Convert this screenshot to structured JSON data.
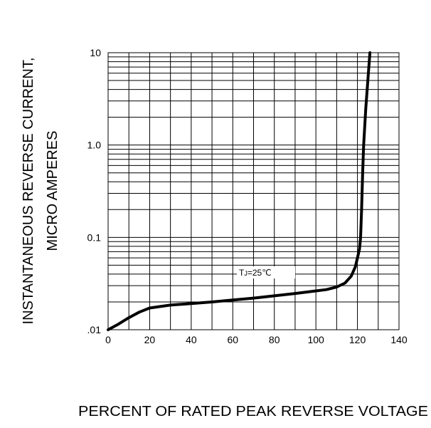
{
  "chart_data": {
    "type": "line",
    "title": "",
    "ylabel_lines": [
      "INSTANTANEOUS REVERSE CURRENT,",
      "MICRO AMPERES"
    ],
    "xlabel": "PERCENT OF RATED PEAK REVERSE VOLTAGE",
    "y_scale": "log",
    "x_range": [
      0,
      140
    ],
    "y_range": [
      0.01,
      10
    ],
    "x_ticks": [
      0,
      20,
      40,
      60,
      80,
      100,
      120,
      140
    ],
    "x_tick_labels": [
      "0",
      "20",
      "40",
      "60",
      "80",
      "100",
      "120",
      "140"
    ],
    "y_ticks": [
      0.01,
      0.1,
      1,
      10
    ],
    "y_tick_labels": [
      ".01",
      "0.1",
      "1.0",
      "10"
    ],
    "grid": true,
    "annotation": {
      "prefix": "T",
      "subscript": "J",
      "suffix": "=25℃"
    },
    "series": [
      {
        "x": [
          0,
          5,
          10,
          15,
          20,
          30,
          40,
          50,
          60,
          70,
          80,
          90,
          100,
          105,
          110,
          114,
          117,
          119,
          120,
          121,
          121.5,
          122,
          122.5,
          123,
          124,
          125,
          126
        ],
        "y": [
          0.01,
          0.0115,
          0.0135,
          0.0155,
          0.0172,
          0.0185,
          0.0192,
          0.02,
          0.021,
          0.022,
          0.0233,
          0.0247,
          0.0263,
          0.0272,
          0.029,
          0.032,
          0.038,
          0.048,
          0.06,
          0.075,
          0.1,
          0.2,
          0.5,
          1.0,
          2.5,
          5.0,
          10
        ]
      }
    ]
  }
}
